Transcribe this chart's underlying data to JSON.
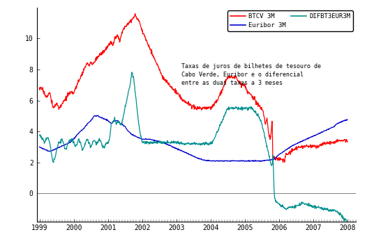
{
  "annotation": "Taxas de juros de bilhetes de tesouro de\nCabo Verde, Euribor e o diferencial\nentre as duas taxas a 3 meses",
  "legend_labels": [
    "BTCV 3M",
    "Euribor 3M",
    "DIFBT3EUR3M"
  ],
  "line_colors": {
    "btcv": "#ff0000",
    "euribor": "#0000cc",
    "diff": "#009090"
  },
  "ylabel_ticks": [
    0,
    2,
    4,
    6,
    8,
    10
  ],
  "ylim": [
    -1.8,
    12.0
  ],
  "xlim_start": 1998.92,
  "xlim_end": 2008.25,
  "xtick_labels": [
    "1999",
    "2000",
    "2001",
    "2002",
    "2003",
    "2004",
    "2005",
    "2006",
    "2007",
    "2008"
  ],
  "xtick_positions": [
    1999,
    2000,
    2001,
    2002,
    2003,
    2004,
    2005,
    2006,
    2007,
    2008
  ],
  "background_color": "#ffffff",
  "font_family": "DejaVu Sans Mono"
}
